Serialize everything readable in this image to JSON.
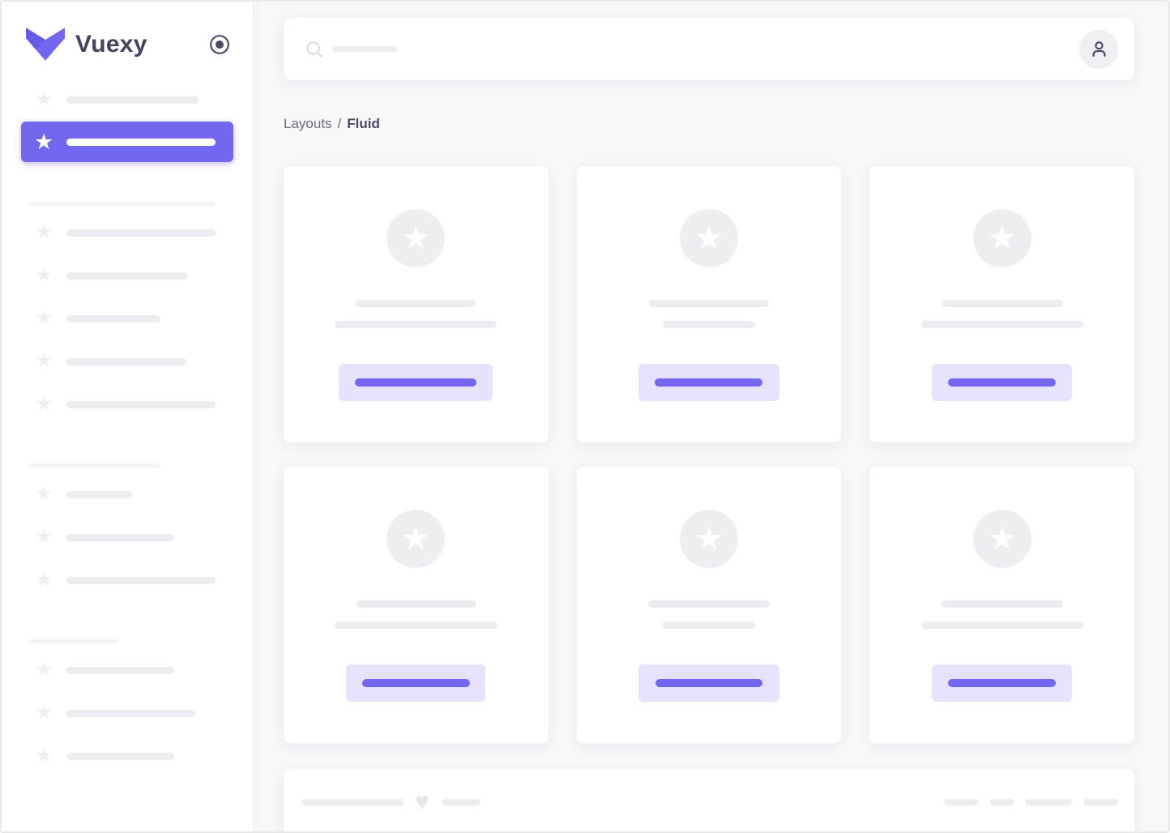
{
  "app": {
    "window_title": "Vuexy - Fluid Layout"
  },
  "sidebar": {
    "brand": "Vuexy",
    "top_items": [
      {
        "width": 163,
        "active": false
      },
      {
        "width": 184,
        "active": true
      }
    ],
    "sections": [
      {
        "divider_width": 231,
        "items": [
          184,
          150,
          116,
          148,
          184
        ]
      },
      {
        "divider_width": 163,
        "items": [
          82,
          133,
          184
        ]
      },
      {
        "divider_width": 112,
        "items": [
          133,
          159,
          133
        ]
      }
    ]
  },
  "topbar": {
    "search_placeholder_width": 80
  },
  "breadcrumb": {
    "parent": "Layouts",
    "separator": "/",
    "current": "Fluid"
  },
  "cards": [
    {
      "line1": 148,
      "line2": 200,
      "button": 190,
      "bar": 150
    },
    {
      "line1": 148,
      "line2": 114,
      "button": 174,
      "bar": 133
    },
    {
      "line1": 150,
      "line2": 200,
      "button": 173,
      "bar": 133
    },
    {
      "line1": 149,
      "line2": 201,
      "button": 172,
      "bar": 133
    },
    {
      "line1": 150,
      "line2": 115,
      "button": 174,
      "bar": 132
    },
    {
      "line1": 150,
      "line2": 200,
      "button": 173,
      "bar": 133
    }
  ],
  "footer": {
    "left_bar_widths": [
      126,
      47
    ],
    "right_bar_widths": [
      43,
      29,
      58,
      43
    ]
  },
  "icons": {
    "star_glyph": "★",
    "heart_glyph": "♥",
    "logo": "vuexy-v-logo",
    "search": "magnifier",
    "avatar": "person-outline",
    "pin": "radio-circle"
  },
  "colors": {
    "primary": "#7367f0",
    "primary_light": "#e6e2fc",
    "skeleton": "#ebedf1",
    "divider": "#f3f4f7",
    "text_dark": "#45415e",
    "breadcrumb_text": "#6f6b7d",
    "body_bg": "#f8f7fa",
    "icon_dark": "#4c4864"
  }
}
